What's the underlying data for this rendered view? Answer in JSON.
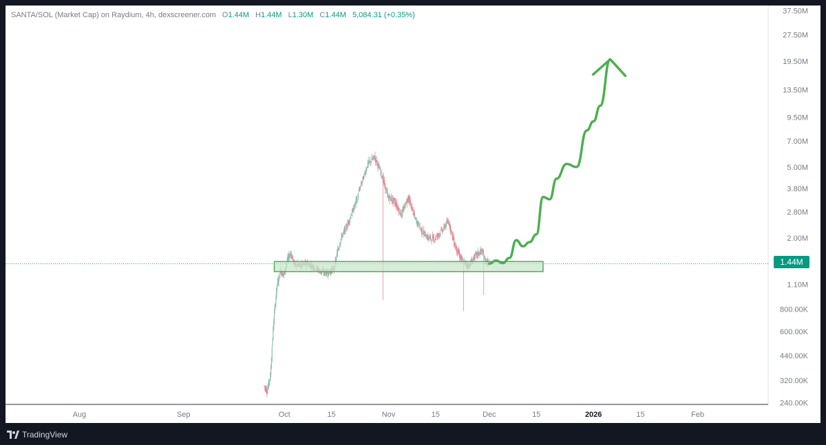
{
  "header": {
    "symbol_text": "SANTA/SOL (Market Cap) on Raydium, 4h, dexscreener.com",
    "open_label": "O",
    "open_value": "1.44M",
    "high_label": "H",
    "high_value": "1.44M",
    "low_label": "L",
    "low_value": "1.30M",
    "close_label": "C",
    "close_value": "1.44M",
    "change": "5,084.31 (+0.35%)"
  },
  "current_price_label": "1.44M",
  "footer": {
    "brand": "TradingView"
  },
  "colors": {
    "up": "#089981",
    "down": "#f23645",
    "candle_up": "#8fbfb0",
    "candle_down": "#e08b94",
    "projection": "#4caf50",
    "zone_fill": "#c8e6c9",
    "zone_border": "#4caf50"
  },
  "chart_data": {
    "type": "candlestick",
    "title": "SANTA/SOL (Market Cap) on Raydium, 4h, dexscreener.com",
    "y_scale": "log",
    "ylim": [
      235000,
      40000000
    ],
    "x_ticks": [
      {
        "label": "Aug",
        "date": "2025-08-01"
      },
      {
        "label": "Sep",
        "date": "2025-09-01"
      },
      {
        "label": "Oct",
        "date": "2025-10-01"
      },
      {
        "label": "15",
        "date": "2025-10-15"
      },
      {
        "label": "Nov",
        "date": "2025-11-01"
      },
      {
        "label": "15",
        "date": "2025-11-15"
      },
      {
        "label": "Dec",
        "date": "2025-12-01"
      },
      {
        "label": "15",
        "date": "2025-12-15"
      },
      {
        "label": "2026",
        "date": "2026-01-01"
      },
      {
        "label": "15",
        "date": "2026-01-15"
      },
      {
        "label": "Feb",
        "date": "2026-02-01"
      }
    ],
    "y_ticks": [
      {
        "label": "37.50M",
        "value": 37500000
      },
      {
        "label": "27.50M",
        "value": 27500000
      },
      {
        "label": "19.50M",
        "value": 19500000
      },
      {
        "label": "13.50M",
        "value": 13500000
      },
      {
        "label": "9.50M",
        "value": 9500000
      },
      {
        "label": "7.00M",
        "value": 7000000
      },
      {
        "label": "5.00M",
        "value": 5000000
      },
      {
        "label": "3.80M",
        "value": 3800000
      },
      {
        "label": "2.80M",
        "value": 2800000
      },
      {
        "label": "2.00M",
        "value": 2000000
      },
      {
        "label": "1.10M",
        "value": 1100000
      },
      {
        "label": "800.00K",
        "value": 800000
      },
      {
        "label": "600.00K",
        "value": 600000
      },
      {
        "label": "440.00K",
        "value": 440000
      },
      {
        "label": "320.00K",
        "value": 320000
      },
      {
        "label": "240.00K",
        "value": 240000
      }
    ],
    "current_price": 1440000,
    "price_path": [
      [
        "2025-09-25",
        300000
      ],
      [
        "2025-09-26",
        280000
      ],
      [
        "2025-09-27",
        340000
      ],
      [
        "2025-09-28",
        700000
      ],
      [
        "2025-09-29",
        1100000
      ],
      [
        "2025-09-30",
        1300000
      ],
      [
        "2025-10-01",
        1250000
      ],
      [
        "2025-10-02",
        1500000
      ],
      [
        "2025-10-03",
        1650000
      ],
      [
        "2025-10-04",
        1450000
      ],
      [
        "2025-10-06",
        1400000
      ],
      [
        "2025-10-08",
        1450000
      ],
      [
        "2025-10-10",
        1380000
      ],
      [
        "2025-10-12",
        1300000
      ],
      [
        "2025-10-14",
        1280000
      ],
      [
        "2025-10-16",
        1350000
      ],
      [
        "2025-10-17",
        1700000
      ],
      [
        "2025-10-18",
        2000000
      ],
      [
        "2025-10-20",
        2400000
      ],
      [
        "2025-10-22",
        3000000
      ],
      [
        "2025-10-24",
        4000000
      ],
      [
        "2025-10-26",
        5200000
      ],
      [
        "2025-10-28",
        5700000
      ],
      [
        "2025-10-30",
        4600000
      ],
      [
        "2025-11-01",
        3400000
      ],
      [
        "2025-11-03",
        3200000
      ],
      [
        "2025-11-05",
        2700000
      ],
      [
        "2025-11-07",
        3400000
      ],
      [
        "2025-11-09",
        2600000
      ],
      [
        "2025-11-11",
        2200000
      ],
      [
        "2025-11-13",
        2000000
      ],
      [
        "2025-11-15",
        2000000
      ],
      [
        "2025-11-17",
        2200000
      ],
      [
        "2025-11-19",
        2500000
      ],
      [
        "2025-11-21",
        1800000
      ],
      [
        "2025-11-23",
        1500000
      ],
      [
        "2025-11-25",
        1400000
      ],
      [
        "2025-11-27",
        1600000
      ],
      [
        "2025-11-29",
        1700000
      ],
      [
        "2025-11-30",
        1500000
      ],
      [
        "2025-12-01",
        1440000
      ]
    ],
    "support_zone": {
      "low": 1300000,
      "high": 1480000,
      "start": "2025-09-28",
      "end": "2025-12-17"
    },
    "projection_path": [
      [
        "2025-12-01",
        1440000
      ],
      [
        "2025-12-03",
        1500000
      ],
      [
        "2025-12-05",
        1450000
      ],
      [
        "2025-12-07",
        1550000
      ],
      [
        "2025-12-09",
        1950000
      ],
      [
        "2025-12-11",
        1800000
      ],
      [
        "2025-12-13",
        1900000
      ],
      [
        "2025-12-15",
        2100000
      ],
      [
        "2025-12-17",
        3400000
      ],
      [
        "2025-12-19",
        3300000
      ],
      [
        "2025-12-21",
        4300000
      ],
      [
        "2025-12-24",
        5200000
      ],
      [
        "2025-12-27",
        5000000
      ],
      [
        "2025-12-30",
        8000000
      ],
      [
        "2026-01-01",
        9000000
      ],
      [
        "2026-01-03",
        11000000
      ],
      [
        "2026-01-06",
        20000000
      ]
    ],
    "projection_arrow_tip": [
      "2026-01-06",
      20000000
    ]
  }
}
